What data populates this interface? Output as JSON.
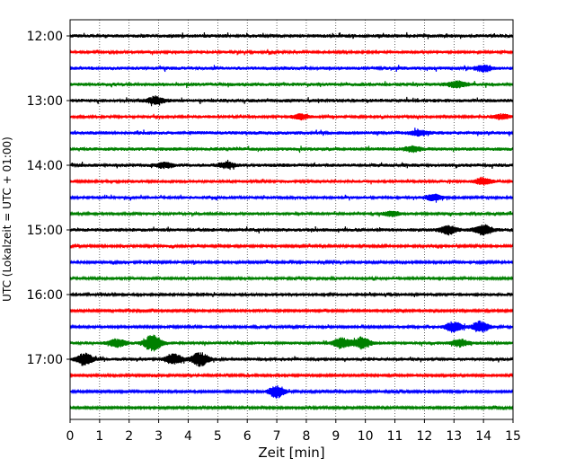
{
  "chart_data": {
    "type": "line",
    "title": "",
    "xlabel": "Zeit  [min]",
    "ylabel": "UTC (Lokalzeit = UTC + 01:00)",
    "xlim": [
      0,
      15
    ],
    "x_ticks": [
      0,
      1,
      2,
      3,
      4,
      5,
      6,
      7,
      8,
      9,
      10,
      11,
      12,
      13,
      14,
      15
    ],
    "y_tick_labels": [
      "12:00",
      "13:00",
      "14:00",
      "15:00",
      "16:00",
      "17:00"
    ],
    "trace_interval_min": 15,
    "start_time": "12:00",
    "grid": "vertical dotted at each minute",
    "trace_colors": [
      "#000000",
      "#ff0000",
      "#0000ff",
      "#008000"
    ],
    "series": [
      {
        "start": "12:00",
        "color": "#000000",
        "amplitude": 0.5
      },
      {
        "start": "12:15",
        "color": "#ff0000",
        "amplitude": 0.4
      },
      {
        "start": "12:30",
        "color": "#0000ff",
        "amplitude": 0.5,
        "events": [
          {
            "t": 14.0,
            "amp": 1.2
          }
        ]
      },
      {
        "start": "12:45",
        "color": "#008000",
        "amplitude": 0.5,
        "events": [
          {
            "t": 13.1,
            "amp": 1.3
          }
        ]
      },
      {
        "start": "13:00",
        "color": "#000000",
        "amplitude": 0.5,
        "events": [
          {
            "t": 2.9,
            "amp": 1.4
          }
        ]
      },
      {
        "start": "13:15",
        "color": "#ff0000",
        "amplitude": 0.4,
        "events": [
          {
            "t": 7.8,
            "amp": 1.0
          },
          {
            "t": 14.6,
            "amp": 1.0
          }
        ]
      },
      {
        "start": "13:30",
        "color": "#0000ff",
        "amplitude": 0.5,
        "events": [
          {
            "t": 11.8,
            "amp": 1.0
          }
        ]
      },
      {
        "start": "13:45",
        "color": "#008000",
        "amplitude": 0.5,
        "events": [
          {
            "t": 11.6,
            "amp": 1.0
          }
        ]
      },
      {
        "start": "14:00",
        "color": "#000000",
        "amplitude": 0.5,
        "events": [
          {
            "t": 3.2,
            "amp": 1.0
          },
          {
            "t": 5.3,
            "amp": 1.0
          }
        ]
      },
      {
        "start": "14:15",
        "color": "#ff0000",
        "amplitude": 0.4,
        "events": [
          {
            "t": 14.0,
            "amp": 1.3
          }
        ]
      },
      {
        "start": "14:30",
        "color": "#0000ff",
        "amplitude": 0.4,
        "events": [
          {
            "t": 12.3,
            "amp": 1.2
          }
        ]
      },
      {
        "start": "14:45",
        "color": "#008000",
        "amplitude": 0.4,
        "events": [
          {
            "t": 10.9,
            "amp": 1.0
          }
        ]
      },
      {
        "start": "15:00",
        "color": "#000000",
        "amplitude": 0.5,
        "events": [
          {
            "t": 12.8,
            "amp": 1.6
          },
          {
            "t": 14.0,
            "amp": 1.8
          }
        ]
      },
      {
        "start": "15:15",
        "color": "#ff0000",
        "amplitude": 0.35
      },
      {
        "start": "15:30",
        "color": "#0000ff",
        "amplitude": 0.35
      },
      {
        "start": "15:45",
        "color": "#008000",
        "amplitude": 0.35
      },
      {
        "start": "16:00",
        "color": "#000000",
        "amplitude": 0.4
      },
      {
        "start": "16:15",
        "color": "#ff0000",
        "amplitude": 0.3
      },
      {
        "start": "16:30",
        "color": "#0000ff",
        "amplitude": 0.35,
        "events": [
          {
            "t": 13.0,
            "amp": 2.2
          },
          {
            "t": 13.9,
            "amp": 2.2
          }
        ]
      },
      {
        "start": "16:45",
        "color": "#008000",
        "amplitude": 0.45,
        "events": [
          {
            "t": 1.6,
            "amp": 1.6
          },
          {
            "t": 2.8,
            "amp": 3.2
          },
          {
            "t": 9.2,
            "amp": 2.0
          },
          {
            "t": 9.9,
            "amp": 2.2
          },
          {
            "t": 13.2,
            "amp": 1.4
          }
        ]
      },
      {
        "start": "17:00",
        "color": "#000000",
        "amplitude": 0.45,
        "events": [
          {
            "t": 0.5,
            "amp": 2.2
          },
          {
            "t": 3.5,
            "amp": 2.0
          },
          {
            "t": 4.4,
            "amp": 2.6
          }
        ]
      },
      {
        "start": "17:15",
        "color": "#ff0000",
        "amplitude": 0.3
      },
      {
        "start": "17:30",
        "color": "#0000ff",
        "amplitude": 0.3,
        "events": [
          {
            "t": 7.0,
            "amp": 2.4
          }
        ]
      },
      {
        "start": "17:45",
        "color": "#008000",
        "amplitude": 0.3
      }
    ]
  }
}
